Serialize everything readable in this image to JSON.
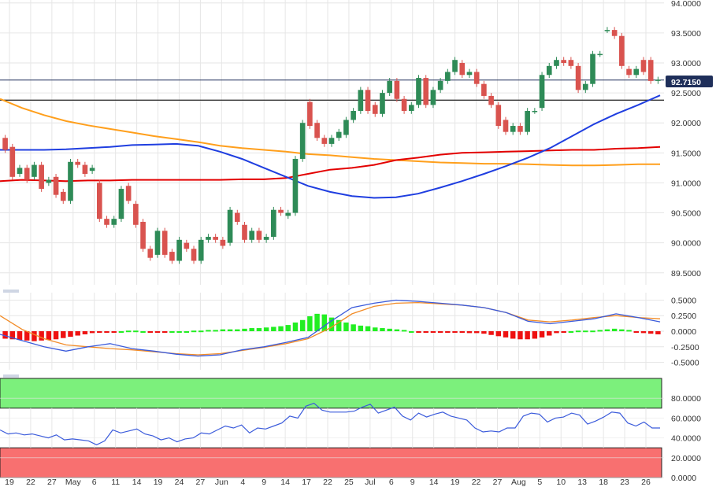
{
  "colors": {
    "bull": "#2e8b57",
    "bear": "#d9534f",
    "sma_red": "#e30000",
    "sma_blue": "#1f3ee0",
    "sma_orange": "#ff9f1c",
    "macd_line": "#3b5bdb",
    "signal_line": "#f28c28",
    "hist_pos": "#22ee22",
    "hist_neg": "#ee1111",
    "rsi_line": "#3b5bdb",
    "overbought": "#7cf07c",
    "oversold": "#f87070",
    "grid": "#e6e6e6",
    "badge": "#1f2f5a",
    "hline": "#333333"
  },
  "price_badge": "92.7150",
  "chart_data": [
    {
      "type": "candlestick",
      "x_tick_labels": [
        "19",
        "22",
        "27",
        "May",
        "6",
        "11",
        "14",
        "19",
        "24",
        "27",
        "Jun",
        "4",
        "9",
        "14",
        "17",
        "22",
        "25",
        "Jul",
        "6",
        "9",
        "14",
        "19",
        "22",
        "27",
        "Aug",
        "5",
        "10",
        "13",
        "18",
        "23",
        "26"
      ],
      "y_tick_labels": [
        "89.5000",
        "90.0000",
        "90.5000",
        "91.0000",
        "91.5000",
        "92.0000",
        "92.5000",
        "93.0000",
        "93.5000",
        "94.0000"
      ],
      "ylim": [
        89.3,
        94.05
      ],
      "horizontal_lines": [
        92.38,
        92.715
      ],
      "candles": [
        [
          91.75,
          91.55
        ],
        [
          91.6,
          91.1
        ],
        [
          91.15,
          91.25
        ],
        [
          91.25,
          91.05
        ],
        [
          91.1,
          91.3
        ],
        [
          91.3,
          90.9
        ],
        [
          91.0,
          91.05
        ],
        [
          91.1,
          90.8
        ],
        [
          90.85,
          90.7
        ],
        [
          90.7,
          91.35
        ],
        [
          91.35,
          91.3
        ],
        [
          91.3,
          91.15
        ],
        [
          91.2,
          91.25
        ],
        [
          91.0,
          90.4
        ],
        [
          90.4,
          90.3
        ],
        [
          90.3,
          90.4
        ],
        [
          90.4,
          90.9
        ],
        [
          90.95,
          90.7
        ],
        [
          90.65,
          90.3
        ],
        [
          90.35,
          89.9
        ],
        [
          89.9,
          89.75
        ],
        [
          89.8,
          90.2
        ],
        [
          90.2,
          89.8
        ],
        [
          89.85,
          89.7
        ],
        [
          89.7,
          90.05
        ],
        [
          90.0,
          89.9
        ],
        [
          89.9,
          89.7
        ],
        [
          89.7,
          90.05
        ],
        [
          90.05,
          90.1
        ],
        [
          90.1,
          90.05
        ],
        [
          90.05,
          89.95
        ],
        [
          90.0,
          90.55
        ],
        [
          90.5,
          90.35
        ],
        [
          90.3,
          90.05
        ],
        [
          90.05,
          90.2
        ],
        [
          90.2,
          90.05
        ],
        [
          90.05,
          90.1
        ],
        [
          90.1,
          90.55
        ],
        [
          90.55,
          90.5
        ],
        [
          90.45,
          90.5
        ],
        [
          90.5,
          91.4
        ],
        [
          91.4,
          92.0
        ],
        [
          92.35,
          91.95
        ],
        [
          92.0,
          91.75
        ],
        [
          91.75,
          91.65
        ],
        [
          91.65,
          91.75
        ],
        [
          91.75,
          91.85
        ],
        [
          91.8,
          92.05
        ],
        [
          92.05,
          92.2
        ],
        [
          92.2,
          92.55
        ],
        [
          92.55,
          92.2
        ],
        [
          92.3,
          92.15
        ],
        [
          92.15,
          92.5
        ],
        [
          92.5,
          92.7
        ],
        [
          92.7,
          92.4
        ],
        [
          92.4,
          92.2
        ],
        [
          92.2,
          92.3
        ],
        [
          92.3,
          92.75
        ],
        [
          92.75,
          92.3
        ],
        [
          92.3,
          92.55
        ],
        [
          92.55,
          92.7
        ],
        [
          92.7,
          92.85
        ],
        [
          92.85,
          93.05
        ],
        [
          93.0,
          92.8
        ],
        [
          92.8,
          92.85
        ],
        [
          92.85,
          92.65
        ],
        [
          92.65,
          92.45
        ],
        [
          92.45,
          92.3
        ],
        [
          92.3,
          91.95
        ],
        [
          92.05,
          91.85
        ],
        [
          91.85,
          91.95
        ],
        [
          91.95,
          91.85
        ],
        [
          91.85,
          92.2
        ],
        [
          92.2,
          92.2
        ],
        [
          92.25,
          92.8
        ],
        [
          92.8,
          92.95
        ],
        [
          92.95,
          93.05
        ],
        [
          93.05,
          93.0
        ],
        [
          93.05,
          92.95
        ],
        [
          92.95,
          92.55
        ],
        [
          92.55,
          92.65
        ],
        [
          92.65,
          93.15
        ],
        [
          93.15,
          93.15
        ],
        [
          93.55,
          93.55
        ],
        [
          93.55,
          93.45
        ],
        [
          93.45,
          92.95
        ],
        [
          92.9,
          92.8
        ],
        [
          92.8,
          92.9
        ],
        [
          93.05,
          92.85
        ],
        [
          93.05,
          92.7
        ],
        [
          92.7,
          92.72
        ]
      ],
      "sma_blue": [
        91.55,
        91.55,
        91.55,
        91.56,
        91.58,
        91.6,
        91.63,
        91.64,
        91.65,
        91.62,
        91.52,
        91.4,
        91.25,
        91.1,
        90.95,
        90.85,
        90.78,
        90.75,
        90.76,
        90.82,
        90.92,
        91.03,
        91.15,
        91.28,
        91.42,
        91.58,
        91.78,
        91.98,
        92.15,
        92.3,
        92.46
      ],
      "sma_red": [
        91.03,
        91.05,
        91.04,
        91.03,
        91.04,
        91.04,
        91.05,
        91.05,
        91.05,
        91.05,
        91.05,
        91.06,
        91.06,
        91.08,
        91.15,
        91.22,
        91.25,
        91.3,
        91.38,
        91.42,
        91.47,
        91.5,
        91.51,
        91.52,
        91.53,
        91.54,
        91.55,
        91.55,
        91.57,
        91.58,
        91.6
      ],
      "sma_orange": [
        92.4,
        92.25,
        92.13,
        92.03,
        91.96,
        91.9,
        91.84,
        91.78,
        91.73,
        91.68,
        91.62,
        91.58,
        91.55,
        91.52,
        91.48,
        91.46,
        91.43,
        91.4,
        91.38,
        91.36,
        91.34,
        91.33,
        91.32,
        91.32,
        91.31,
        91.3,
        91.29,
        91.29,
        91.3,
        91.31,
        91.31
      ]
    },
    {
      "type": "macd",
      "y_tick_labels": [
        "0.5000",
        "0.2500",
        "0.0000",
        "-0.2500",
        "-0.5000"
      ],
      "ylim": [
        -0.62,
        0.62
      ],
      "macd": [
        -0.05,
        -0.15,
        -0.25,
        -0.32,
        -0.25,
        -0.2,
        -0.28,
        -0.32,
        -0.37,
        -0.4,
        -0.38,
        -0.3,
        -0.25,
        -0.18,
        -0.1,
        0.15,
        0.38,
        0.45,
        0.5,
        0.48,
        0.45,
        0.42,
        0.38,
        0.3,
        0.16,
        0.12,
        0.16,
        0.2,
        0.28,
        0.22,
        0.15
      ],
      "signal": [
        0.25,
        0.03,
        -0.12,
        -0.22,
        -0.25,
        -0.28,
        -0.3,
        -0.33,
        -0.36,
        -0.38,
        -0.36,
        -0.31,
        -0.26,
        -0.2,
        -0.12,
        0.05,
        0.28,
        0.4,
        0.45,
        0.46,
        0.44,
        0.42,
        0.38,
        0.3,
        0.18,
        0.15,
        0.18,
        0.22,
        0.25,
        0.22,
        0.2
      ],
      "histogram": [
        -0.12,
        -0.13,
        -0.14,
        -0.15,
        -0.16,
        -0.15,
        -0.14,
        -0.13,
        -0.11,
        -0.09,
        -0.07,
        -0.05,
        -0.03,
        -0.02,
        -0.01,
        -0.01,
        0.0,
        0.01,
        0.01,
        0.0,
        -0.01,
        -0.01,
        -0.01,
        0.0,
        0.0,
        0.0,
        0.01,
        0.01,
        0.02,
        0.02,
        0.03,
        0.03,
        0.03,
        0.04,
        0.05,
        0.05,
        0.06,
        0.07,
        0.08,
        0.1,
        0.14,
        0.18,
        0.24,
        0.28,
        0.27,
        0.22,
        0.18,
        0.14,
        0.11,
        0.09,
        0.08,
        0.06,
        0.05,
        0.04,
        0.03,
        0.02,
        0.0,
        -0.01,
        -0.02,
        -0.02,
        -0.02,
        -0.02,
        -0.01,
        -0.02,
        -0.03,
        -0.03,
        -0.04,
        -0.06,
        -0.08,
        -0.1,
        -0.12,
        -0.13,
        -0.13,
        -0.12,
        -0.1,
        -0.07,
        -0.03,
        -0.02,
        0.0,
        0.01,
        0.01,
        0.01,
        0.02,
        0.03,
        0.04,
        0.03,
        0.02,
        -0.02,
        -0.03,
        -0.04,
        -0.05
      ]
    },
    {
      "type": "rsi",
      "y_tick_labels": [
        "80.0000",
        "60.0000",
        "40.0000",
        "20.0000",
        "0.0000"
      ],
      "ylim": [
        0,
        100
      ],
      "overbought": 70,
      "oversold": 30,
      "values": [
        48,
        44,
        45,
        43,
        44,
        42,
        40,
        43,
        38,
        39,
        38,
        37,
        33,
        37,
        48,
        45,
        47,
        49,
        44,
        42,
        38,
        40,
        36,
        39,
        40,
        45,
        44,
        48,
        52,
        50,
        53,
        45,
        50,
        49,
        52,
        55,
        62,
        60,
        72,
        75,
        68,
        66,
        66,
        66,
        67,
        71,
        74,
        65,
        68,
        71,
        62,
        58,
        65,
        61,
        64,
        66,
        62,
        60,
        58,
        50,
        46,
        47,
        46,
        50,
        50,
        62,
        65,
        64,
        56,
        60,
        61,
        65,
        63,
        54,
        57,
        61,
        66,
        65,
        55,
        52,
        56,
        50,
        50
      ]
    }
  ]
}
